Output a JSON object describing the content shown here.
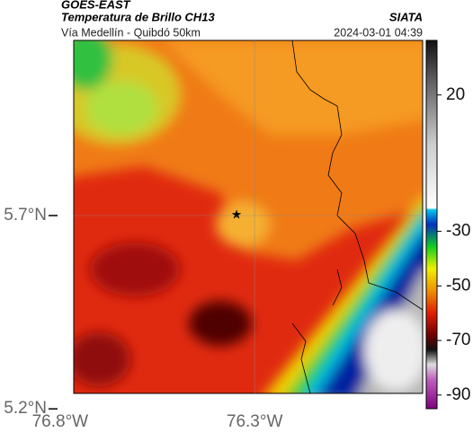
{
  "header": {
    "title": "GOES-EAST",
    "subtitle": "Temperatura de Brillo CH13",
    "source": "SIATA",
    "route": "Vía Medellín - Quibdó 50km",
    "timestamp": "2024-03-01 04:39"
  },
  "map": {
    "xlim": [
      -76.765,
      -75.868
    ],
    "ylim": [
      5.24,
      6.153
    ],
    "xticks": [
      {
        "value": -76.8,
        "label": "76.8°W"
      },
      {
        "value": -76.3,
        "label": "76.3°W"
      }
    ],
    "yticks": [
      {
        "value": 5.7,
        "label": "5.7°N"
      },
      {
        "value": 5.2,
        "label": "5.2°N"
      }
    ],
    "grid": true
  },
  "colorbar": {
    "lim": [
      -95,
      40
    ],
    "ticks": [
      20,
      -30,
      -50,
      -70,
      -90
    ]
  }
}
